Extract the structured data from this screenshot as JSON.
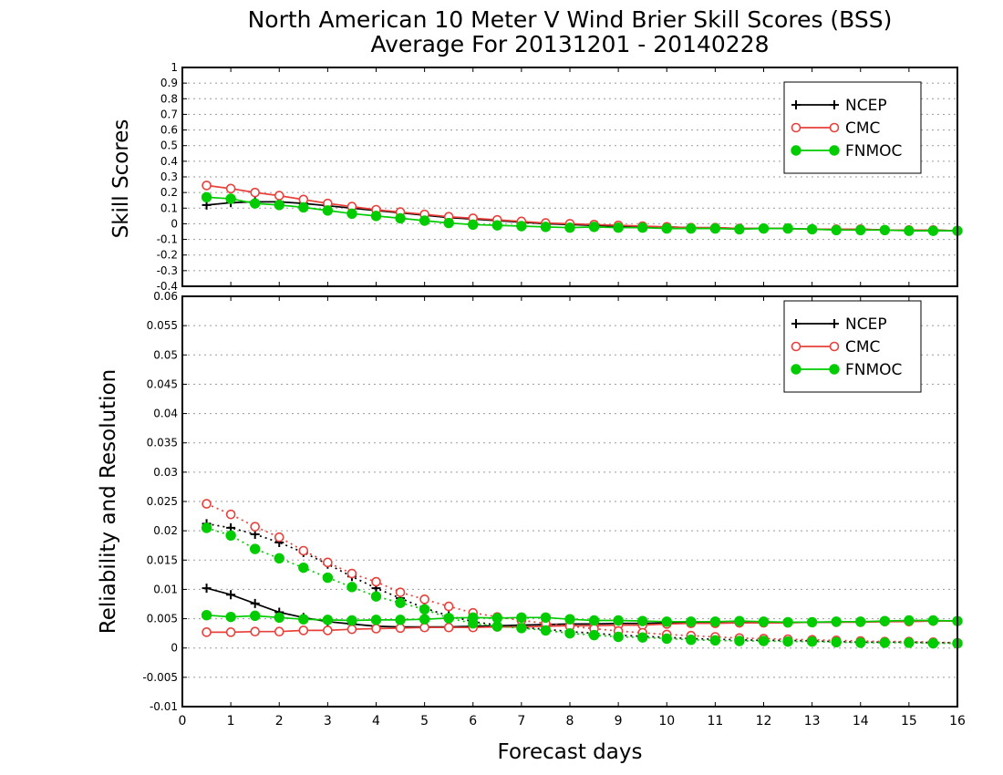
{
  "title_line1": "North American 10 Meter V Wind Brier Skill Scores (BSS)",
  "title_line2": "Average For 20131201 - 20140228",
  "xlabel": "Forecast days",
  "colors": {
    "NCEP": "#000000",
    "CMC": "#e8413c",
    "FNMOC": "#00cc00"
  },
  "chart_data": [
    {
      "type": "line",
      "ylabel": "Skill Scores",
      "xlim": [
        0,
        16
      ],
      "ylim": [
        -0.4,
        1
      ],
      "yticks": [
        "1",
        "0.9",
        "0.8",
        "0.7",
        "0.6",
        "0.5",
        "0.4",
        "0.3",
        "0.2",
        "0.1",
        "0",
        "-0.1",
        "-0.2",
        "-0.3",
        "-0.4"
      ],
      "legend": [
        "NCEP",
        "CMC",
        "FNMOC"
      ],
      "x": [
        0.5,
        1,
        1.5,
        2,
        2.5,
        3,
        3.5,
        4,
        4.5,
        5,
        5.5,
        6,
        6.5,
        7,
        7.5,
        8,
        8.5,
        9,
        9.5,
        10,
        10.5,
        11,
        11.5,
        12,
        12.5,
        13,
        13.5,
        14,
        14.5,
        15,
        15.5,
        16
      ],
      "series": [
        {
          "name": "NCEP",
          "style": "solid",
          "marker": "plus",
          "values": [
            0.12,
            0.135,
            0.14,
            0.14,
            0.13,
            0.115,
            0.1,
            0.085,
            0.07,
            0.055,
            0.04,
            0.03,
            0.02,
            0.01,
            0.0,
            -0.005,
            -0.01,
            -0.015,
            -0.02,
            -0.02,
            -0.025,
            -0.025,
            -0.03,
            -0.03,
            -0.03,
            -0.035,
            -0.035,
            -0.035,
            -0.04,
            -0.04,
            -0.04,
            -0.045
          ]
        },
        {
          "name": "CMC",
          "style": "solid",
          "marker": "open",
          "values": [
            0.245,
            0.225,
            0.2,
            0.18,
            0.155,
            0.13,
            0.11,
            0.09,
            0.075,
            0.06,
            0.045,
            0.035,
            0.025,
            0.015,
            0.005,
            0.0,
            -0.005,
            -0.01,
            -0.015,
            -0.02,
            -0.025,
            -0.025,
            -0.03,
            -0.03,
            -0.03,
            -0.035,
            -0.035,
            -0.035,
            -0.04,
            -0.04,
            -0.04,
            -0.045
          ]
        },
        {
          "name": "FNMOC",
          "style": "solid",
          "marker": "filled",
          "values": [
            0.17,
            0.16,
            0.13,
            0.12,
            0.105,
            0.085,
            0.065,
            0.05,
            0.035,
            0.02,
            0.005,
            -0.005,
            -0.01,
            -0.015,
            -0.02,
            -0.025,
            -0.02,
            -0.025,
            -0.025,
            -0.03,
            -0.03,
            -0.03,
            -0.035,
            -0.03,
            -0.03,
            -0.035,
            -0.04,
            -0.04,
            -0.04,
            -0.045,
            -0.045,
            -0.045
          ]
        }
      ]
    },
    {
      "type": "line",
      "ylabel": "Reliability and Resolution",
      "xlim": [
        0,
        16
      ],
      "ylim": [
        -0.01,
        0.06
      ],
      "yticks": [
        "0.06",
        "0.055",
        "0.05",
        "0.045",
        "0.04",
        "0.035",
        "0.03",
        "0.025",
        "0.02",
        "0.015",
        "0.01",
        "0.005",
        "0",
        "-0.005",
        "-0.01"
      ],
      "xticks": [
        "0",
        "1",
        "2",
        "3",
        "4",
        "5",
        "6",
        "7",
        "8",
        "9",
        "10",
        "11",
        "12",
        "13",
        "14",
        "15",
        "16"
      ],
      "legend": [
        "NCEP",
        "CMC",
        "FNMOC"
      ],
      "x": [
        0.5,
        1,
        1.5,
        2,
        2.5,
        3,
        3.5,
        4,
        4.5,
        5,
        5.5,
        6,
        6.5,
        7,
        7.5,
        8,
        8.5,
        9,
        9.5,
        10,
        10.5,
        11,
        11.5,
        12,
        12.5,
        13,
        13.5,
        14,
        14.5,
        15,
        15.5,
        16
      ],
      "series": [
        {
          "name": "NCEP",
          "kind": "Resolution",
          "style": "solid",
          "marker": "plus",
          "values": [
            0.0102,
            0.0091,
            0.0076,
            0.0061,
            0.0052,
            0.0045,
            0.0041,
            0.0037,
            0.0036,
            0.0036,
            0.0036,
            0.0037,
            0.0038,
            0.0039,
            0.004,
            0.0041,
            0.0041,
            0.0042,
            0.0042,
            0.0043,
            0.0043,
            0.0043,
            0.0043,
            0.0044,
            0.0044,
            0.0044,
            0.0044,
            0.0045,
            0.0045,
            0.0046,
            0.0046,
            0.0046
          ]
        },
        {
          "name": "NCEP",
          "kind": "Reliability",
          "style": "dotted",
          "marker": "plus",
          "values": [
            0.0212,
            0.0205,
            0.0194,
            0.018,
            0.0163,
            0.0143,
            0.0122,
            0.0102,
            0.0085,
            0.0068,
            0.0055,
            0.0045,
            0.0039,
            0.0035,
            0.0032,
            0.0028,
            0.0025,
            0.0022,
            0.002,
            0.0018,
            0.0016,
            0.0015,
            0.0014,
            0.0013,
            0.0013,
            0.0012,
            0.0011,
            0.001,
            0.001,
            0.001,
            0.0009,
            0.0009
          ]
        },
        {
          "name": "CMC",
          "kind": "Resolution",
          "style": "solid",
          "marker": "open",
          "values": [
            0.0027,
            0.0027,
            0.0028,
            0.0028,
            0.003,
            0.003,
            0.0032,
            0.0033,
            0.0034,
            0.0035,
            0.0035,
            0.0035,
            0.0036,
            0.0036,
            0.0037,
            0.0038,
            0.0038,
            0.0039,
            0.0039,
            0.0041,
            0.0042,
            0.0042,
            0.0043,
            0.0043,
            0.0043,
            0.0044,
            0.0044,
            0.0044,
            0.0045,
            0.0045,
            0.0046,
            0.0046
          ]
        },
        {
          "name": "CMC",
          "kind": "Reliability",
          "style": "dotted",
          "marker": "open",
          "values": [
            0.0246,
            0.0228,
            0.0207,
            0.0189,
            0.0166,
            0.0146,
            0.0127,
            0.0113,
            0.0095,
            0.0083,
            0.0071,
            0.006,
            0.0053,
            0.0047,
            0.0042,
            0.0037,
            0.0033,
            0.0029,
            0.0026,
            0.0023,
            0.0021,
            0.0019,
            0.0017,
            0.0016,
            0.0015,
            0.0014,
            0.0013,
            0.0012,
            0.0011,
            0.0011,
            0.001,
            0.0009
          ]
        },
        {
          "name": "FNMOC",
          "kind": "Resolution",
          "style": "solid",
          "marker": "filled",
          "values": [
            0.0056,
            0.0053,
            0.0055,
            0.0052,
            0.0049,
            0.0048,
            0.0047,
            0.0048,
            0.0048,
            0.0049,
            0.0051,
            0.0052,
            0.0051,
            0.0052,
            0.0052,
            0.0049,
            0.0047,
            0.0047,
            0.0046,
            0.0045,
            0.0045,
            0.0045,
            0.0046,
            0.0045,
            0.0044,
            0.0044,
            0.0045,
            0.0045,
            0.0046,
            0.0047,
            0.0047,
            0.0046
          ]
        },
        {
          "name": "FNMOC",
          "kind": "Reliability",
          "style": "dotted",
          "marker": "filled",
          "values": [
            0.0205,
            0.0192,
            0.0169,
            0.0153,
            0.0137,
            0.012,
            0.0104,
            0.0088,
            0.0077,
            0.0066,
            0.0051,
            0.0042,
            0.0037,
            0.0034,
            0.003,
            0.0025,
            0.0022,
            0.0019,
            0.0018,
            0.0016,
            0.0014,
            0.0013,
            0.0012,
            0.0012,
            0.0011,
            0.0011,
            0.001,
            0.0009,
            0.0009,
            0.0009,
            0.0008,
            0.0008
          ]
        }
      ]
    }
  ]
}
